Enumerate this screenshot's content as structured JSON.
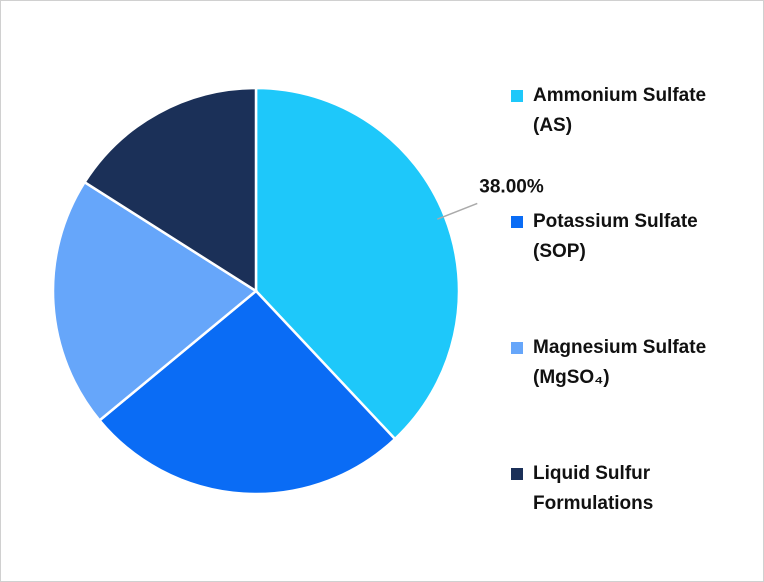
{
  "chart_data": {
    "type": "pie",
    "categories": [
      "Ammonium Sulfate (AS)",
      "Potassium Sulfate (SOP)",
      "Magnesium Sulfate (MgSO₄)",
      "Liquid Sulfur Formulations"
    ],
    "values": [
      38,
      26,
      20,
      16
    ],
    "value_labels": [
      "38.00%",
      null,
      null,
      null
    ],
    "colors": [
      "#1ec8fa",
      "#0a6cf5",
      "#66a6fa",
      "#1b3058"
    ]
  }
}
